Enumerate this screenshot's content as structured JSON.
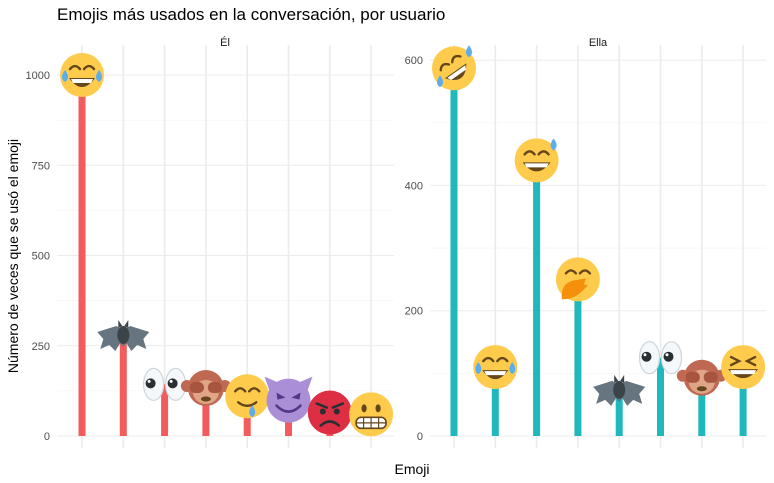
{
  "chart_data": {
    "type": "bar",
    "title": "Emojis más usados en la conversación, por usuario",
    "xlabel": "Emoji",
    "ylabel": "Número de veces que se usó el emoji",
    "grid": true,
    "legend": "none",
    "colors": {
      "Él": "#f25c5c",
      "Ella": "#1fb8bd"
    },
    "panels": [
      {
        "name": "Él",
        "color": "#f25c5c",
        "ylim": [
          0,
          1050
        ],
        "yticks": [
          0,
          250,
          500,
          750,
          1000
        ],
        "ytick_labels": [
          "0",
          "250",
          "500",
          "750",
          "1000"
        ],
        "categories": [
          "face-with-tears-of-joy",
          "bat",
          "eyes",
          "see-no-evil-monkey",
          "smiling-face-with-tear",
          "smiling-face-with-horns",
          "pouting-face",
          "grimacing-face"
        ],
        "values": [
          1000,
          277,
          143,
          133,
          110,
          98,
          65,
          60
        ]
      },
      {
        "name": "Ella",
        "color": "#1fb8bd",
        "ylim": [
          0,
          605
        ],
        "yticks": [
          0,
          200,
          400,
          600
        ],
        "ytick_labels": [
          "0",
          "200",
          "400",
          "600"
        ],
        "categories": [
          "rolling-on-the-floor-laughing",
          "face-with-tears-of-joy",
          "grinning-face-with-sweat",
          "face-with-hand-over-mouth",
          "bat",
          "eyes",
          "see-no-evil-monkey",
          "grinning-squinting-face"
        ],
        "values": [
          587,
          110,
          440,
          250,
          72,
          125,
          93,
          110
        ]
      }
    ]
  }
}
